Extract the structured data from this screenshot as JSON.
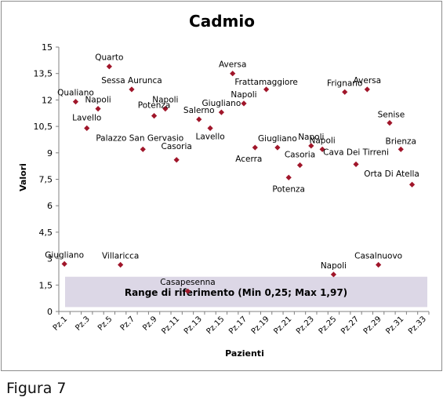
{
  "figure_caption": "Figura 7",
  "chart_data": {
    "type": "scatter",
    "title": "Cadmio",
    "xlabel": "Pazienti",
    "ylabel": "Valori",
    "ylim": [
      0,
      15
    ],
    "y_ticks": [
      0,
      1.5,
      3,
      4.5,
      6,
      7.5,
      9,
      10.5,
      12,
      13.5,
      15
    ],
    "y_tick_labels": [
      "0",
      "1,5",
      "3",
      "4,5",
      "6",
      "7,5",
      "9",
      "10,5",
      "12",
      "13,5",
      "15"
    ],
    "x_tick_labels": [
      "Pz.1",
      "Pz.3",
      "Pz.5",
      "Pz.7",
      "Pz.9",
      "Pz.11",
      "Pz.13",
      "Pz.15",
      "Pz.17",
      "Pz.19",
      "Pz.21",
      "Pz.23",
      "Pz.25",
      "Pz.27",
      "Pz.29",
      "Pz.31",
      "Pz.33"
    ],
    "grid": false,
    "marker_color": "#a0162a",
    "reference_range": {
      "min": 0.25,
      "max": 1.97,
      "label": "Range di riferimento  (Min 0,25; Max 1,97)",
      "color": "#dcd7e6"
    },
    "points": [
      {
        "x": 1,
        "y": 2.7,
        "label": "Giugliano"
      },
      {
        "x": 2,
        "y": 11.9,
        "label": "Qualiano"
      },
      {
        "x": 3,
        "y": 10.4,
        "label": "Lavello"
      },
      {
        "x": 4,
        "y": 11.5,
        "label": "Napoli"
      },
      {
        "x": 5,
        "y": 13.9,
        "label": "Quarto"
      },
      {
        "x": 6,
        "y": 2.65,
        "label": "Villaricca"
      },
      {
        "x": 7,
        "y": 12.6,
        "label": "Sessa Aurunca"
      },
      {
        "x": 8,
        "y": 9.2,
        "label": "Palazzo San Gervasio"
      },
      {
        "x": 9,
        "y": 11.1,
        "label": "Potenza"
      },
      {
        "x": 10,
        "y": 11.5,
        "label": "Napoli"
      },
      {
        "x": 11,
        "y": 8.6,
        "label": "Casoria"
      },
      {
        "x": 12,
        "y": 1.15,
        "label": "Casapesenna"
      },
      {
        "x": 13,
        "y": 10.9,
        "label": "Salerno"
      },
      {
        "x": 14,
        "y": 10.4,
        "label": "Lavello"
      },
      {
        "x": 15,
        "y": 11.3,
        "label": "Giugliano"
      },
      {
        "x": 16,
        "y": 13.5,
        "label": "Aversa"
      },
      {
        "x": 17,
        "y": 11.8,
        "label": "Napoli"
      },
      {
        "x": 18,
        "y": 9.3,
        "label": "Acerra"
      },
      {
        "x": 19,
        "y": 12.6,
        "label": "Frattamaggiore"
      },
      {
        "x": 20,
        "y": 9.3,
        "label": "Giugliano"
      },
      {
        "x": 21,
        "y": 7.6,
        "label": "Potenza"
      },
      {
        "x": 22,
        "y": 8.3,
        "label": "Casoria"
      },
      {
        "x": 23,
        "y": 9.4,
        "label": "Napoli"
      },
      {
        "x": 24,
        "y": 9.2,
        "label": "Napoli"
      },
      {
        "x": 25,
        "y": 2.1,
        "label": "Napoli"
      },
      {
        "x": 26,
        "y": 12.45,
        "label": "Frignano"
      },
      {
        "x": 27,
        "y": 8.35,
        "label": "Cava Dei Tirreni"
      },
      {
        "x": 28,
        "y": 12.6,
        "label": "Aversa"
      },
      {
        "x": 29,
        "y": 2.65,
        "label": "Casalnuovo"
      },
      {
        "x": 30,
        "y": 10.7,
        "label": "Senise"
      },
      {
        "x": 31,
        "y": 9.2,
        "label": "Brienza"
      },
      {
        "x": 32,
        "y": 7.2,
        "label": "Orta Di Atella"
      }
    ]
  }
}
